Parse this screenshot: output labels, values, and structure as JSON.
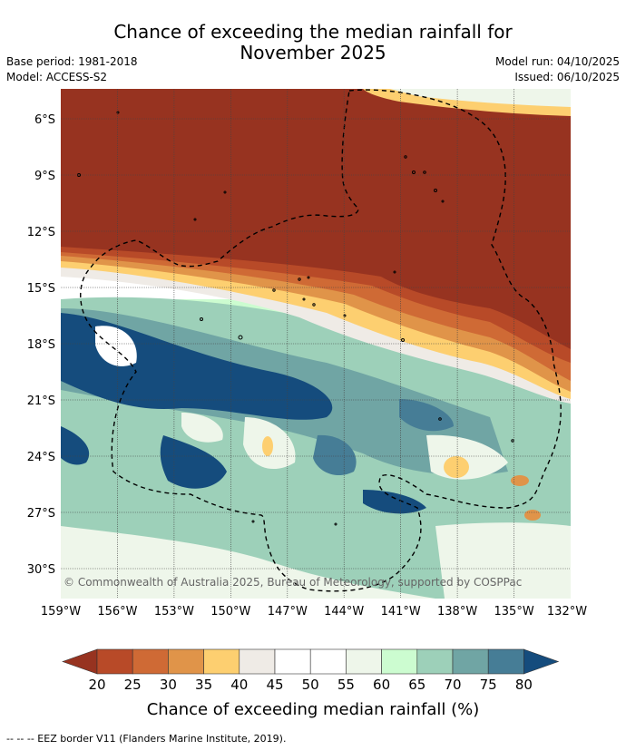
{
  "header": {
    "title_line1": "Chance of exceeding the median rainfall for",
    "title_line2": "November 2025",
    "base_period": "Base period: 1981-2018",
    "model": "Model: ACCESS-S2",
    "model_run": "Model run: 04/10/2025",
    "issued": "Issued: 06/10/2025"
  },
  "map": {
    "copyright": "© Commonwealth of Australia 2025, Bureau of Meteorology, supported by COSPPac",
    "lat_labels": [
      "6°S",
      "9°S",
      "12°S",
      "15°S",
      "18°S",
      "21°S",
      "24°S",
      "27°S",
      "30°S"
    ],
    "lon_labels": [
      "159°W",
      "156°W",
      "153°W",
      "150°W",
      "147°W",
      "144°W",
      "141°W",
      "138°W",
      "135°W",
      "132°W"
    ]
  },
  "colorbar": {
    "title": "Chance of exceeding median rainfall (%)",
    "tick_labels": [
      "20",
      "25",
      "30",
      "35",
      "40",
      "45",
      "50",
      "55",
      "60",
      "65",
      "70",
      "75",
      "80"
    ],
    "colors": [
      "#973320",
      "#b84a28",
      "#cf6a35",
      "#e09449",
      "#fdcf70",
      "#efebe6",
      "#ffffff",
      "#ffffff",
      "#eef6ea",
      "#ccfcd0",
      "#9dd0b9",
      "#70a5a4",
      "#467d96",
      "#154c7d"
    ]
  },
  "footer": {
    "legend_text": "--  --  -- EEZ border V11 (Flanders Marine Institute, 2019)."
  }
}
